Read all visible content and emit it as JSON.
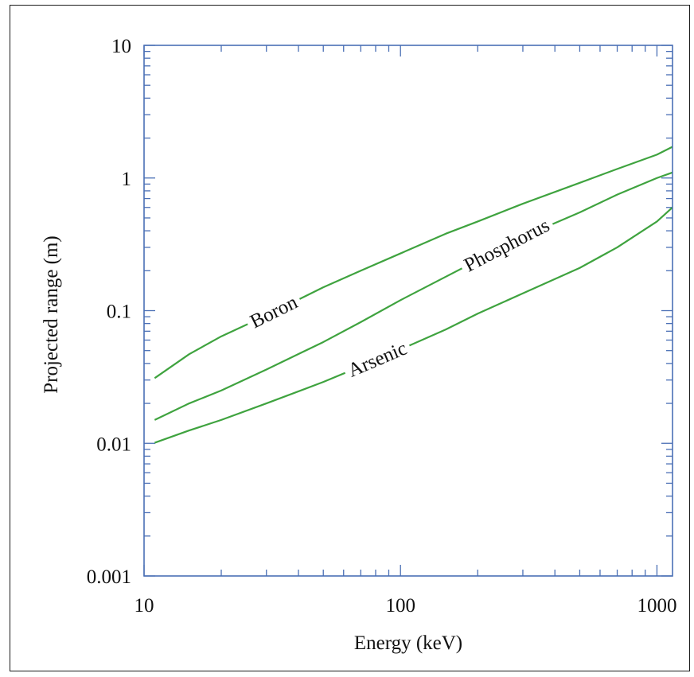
{
  "chart_data": {
    "type": "line",
    "title": "",
    "xlabel": "Energy (keV)",
    "ylabel": "Projected range (m)",
    "x_scale": "log",
    "y_scale": "log",
    "xlim": [
      10,
      1150
    ],
    "ylim": [
      0.001,
      10
    ],
    "x_tick_labels": [
      "10",
      "100",
      "1000"
    ],
    "x_tick_values": [
      10,
      100,
      1000
    ],
    "y_tick_labels": [
      "0.001",
      "0.01",
      "0.1",
      "1",
      "10"
    ],
    "y_tick_values": [
      0.001,
      0.01,
      0.1,
      1,
      10
    ],
    "grid": false,
    "legend": "none",
    "line_color": "#3fa33f",
    "axis_color": "#4a6fb5",
    "series": [
      {
        "name": "Boron",
        "x": [
          11,
          15,
          20,
          30,
          50,
          70,
          100,
          150,
          200,
          300,
          500,
          700,
          1000,
          1150
        ],
        "y": [
          0.031,
          0.047,
          0.064,
          0.092,
          0.15,
          0.2,
          0.27,
          0.38,
          0.47,
          0.64,
          0.92,
          1.17,
          1.5,
          1.72
        ]
      },
      {
        "name": "Phosphorus",
        "x": [
          11,
          15,
          20,
          30,
          50,
          70,
          100,
          150,
          200,
          300,
          500,
          700,
          1000,
          1150
        ],
        "y": [
          0.015,
          0.02,
          0.025,
          0.036,
          0.058,
          0.082,
          0.12,
          0.18,
          0.24,
          0.36,
          0.55,
          0.75,
          1.0,
          1.1
        ]
      },
      {
        "name": "Arsenic",
        "x": [
          11,
          15,
          20,
          30,
          50,
          70,
          100,
          150,
          200,
          300,
          500,
          700,
          1000,
          1150
        ],
        "y": [
          0.0101,
          0.0125,
          0.015,
          0.02,
          0.029,
          0.038,
          0.051,
          0.072,
          0.095,
          0.135,
          0.21,
          0.3,
          0.47,
          0.6
        ]
      }
    ]
  }
}
